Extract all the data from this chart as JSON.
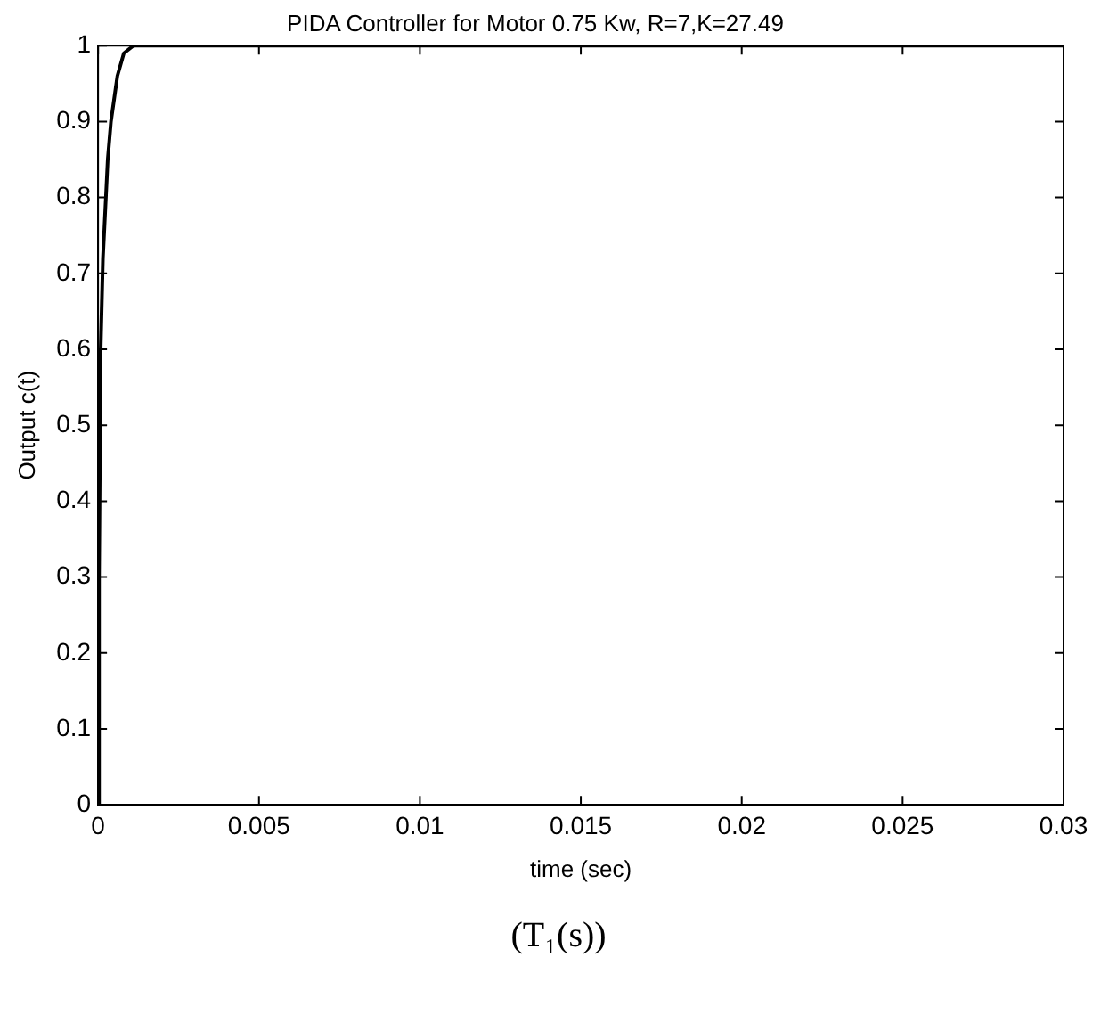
{
  "chart_data": {
    "type": "line",
    "title": "PIDA Controller for Motor 0.75 Kw, R=7,K=27.49",
    "xlabel": "time (sec)",
    "ylabel": "Output c(t)",
    "annotations": [
      "(T₁(s))"
    ],
    "x": [
      0,
      3e-05,
      8e-05,
      0.00015,
      0.0003,
      0.0004,
      0.0006,
      0.0008,
      0.0011,
      0.03
    ],
    "series": [
      {
        "color": "#000000",
        "values": [
          0,
          0.3,
          0.6,
          0.72,
          0.85,
          0.9,
          0.96,
          0.99,
          1,
          1
        ]
      }
    ],
    "xlim": [
      0,
      0.03
    ],
    "xticks": [
      0,
      0.005,
      0.01,
      0.015,
      0.02,
      0.025,
      0.03
    ],
    "ylim": [
      0,
      1
    ],
    "yticks": [
      0,
      0.1,
      0.2,
      0.3,
      0.4,
      0.5,
      0.6,
      0.7,
      0.8,
      0.9,
      1
    ],
    "grid": false,
    "legend": false,
    "marker": "none",
    "line_style": "solid"
  }
}
